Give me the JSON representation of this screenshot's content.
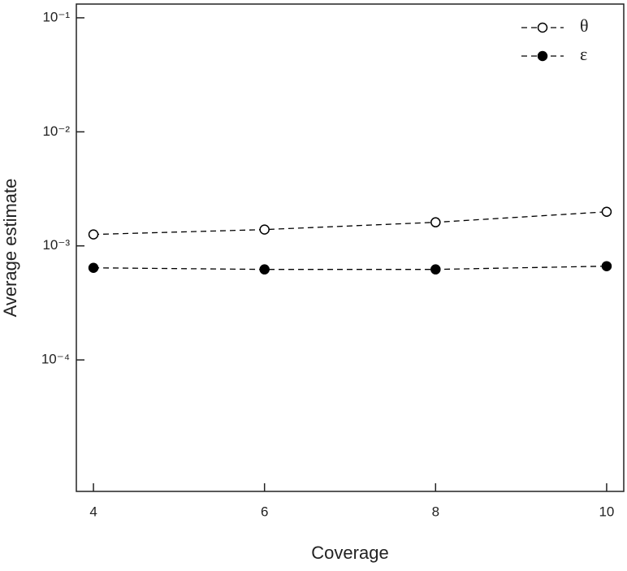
{
  "chart_data": {
    "type": "line",
    "x_label": "Coverage",
    "y_label": "Average estimate",
    "x": [
      4,
      6,
      8,
      10
    ],
    "series": [
      {
        "name": "θ",
        "color": "#000000",
        "marker": "open-circle",
        "values": [
          0.00126,
          0.00139,
          0.00161,
          0.00199
        ]
      },
      {
        "name": "ε",
        "color": "#000000",
        "marker": "filled-circle",
        "values": [
          0.000642,
          0.000622,
          0.000622,
          0.000664
        ]
      }
    ],
    "xlim": [
      3.8,
      10.2
    ],
    "xticks": [
      4,
      6,
      8,
      10
    ],
    "ylim": [
      7.03e-06,
      0.132
    ],
    "log_y": true,
    "yticks": [
      {
        "value": 0.1,
        "label": "10⁻¹"
      },
      {
        "value": 0.01,
        "label": "10⁻²"
      },
      {
        "value": 0.001,
        "label": "10⁻³"
      },
      {
        "value": 0.0001,
        "label": "10⁻⁴"
      }
    ],
    "grid": false,
    "legend": "upper right",
    "line_style": "dashed"
  }
}
